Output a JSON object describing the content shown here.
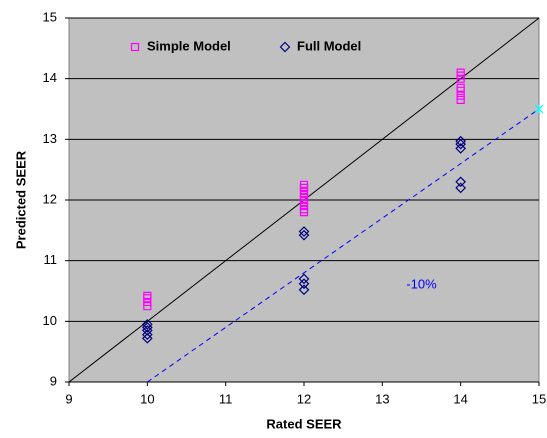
{
  "chart_data": {
    "type": "scatter",
    "x_label": "Rated SEER",
    "y_label": "Predicted SEER",
    "xlim": [
      9,
      15
    ],
    "ylim": [
      9,
      15
    ],
    "xticks": [
      9,
      10,
      11,
      12,
      13,
      14,
      15
    ],
    "yticks": [
      9,
      10,
      11,
      12,
      13,
      14,
      15
    ],
    "grid": true,
    "background": "#c0c0c0",
    "legend": "upper left",
    "series": [
      {
        "name": "Simple Model",
        "color": "#ff00ff",
        "marker": "square",
        "x": [
          10,
          10,
          10,
          10,
          12,
          12,
          12,
          12,
          12,
          12,
          12,
          12,
          12,
          12,
          14,
          14,
          14,
          14,
          14,
          14,
          14
        ],
        "values": [
          10.25,
          10.32,
          10.38,
          10.42,
          11.8,
          11.85,
          11.9,
          11.95,
          12.0,
          12.05,
          12.1,
          12.15,
          12.2,
          12.25,
          13.65,
          13.72,
          13.8,
          13.85,
          14.0,
          14.05,
          14.1
        ]
      },
      {
        "name": "Full Model",
        "color": "#000080",
        "marker": "diamond",
        "x": [
          10,
          10,
          10,
          10,
          10,
          12,
          12,
          12,
          12,
          12,
          14,
          14,
          14,
          14,
          14
        ],
        "values": [
          9.72,
          9.78,
          9.85,
          9.9,
          9.95,
          10.52,
          10.62,
          10.7,
          11.42,
          11.48,
          12.2,
          12.3,
          12.85,
          12.92,
          12.97
        ]
      }
    ],
    "reference_lines": [
      {
        "x": [
          9,
          15
        ],
        "values": [
          9,
          15
        ],
        "color": "#000000",
        "dashed": false
      },
      {
        "x": [
          10,
          15
        ],
        "values": [
          9,
          13.5
        ],
        "color": "#0000ff",
        "dashed": true,
        "marker_color": "#00ffff"
      }
    ],
    "annotations": [
      {
        "text": "-10%",
        "x": 13.5,
        "y": 10.6,
        "color": "#0000ff"
      }
    ]
  }
}
